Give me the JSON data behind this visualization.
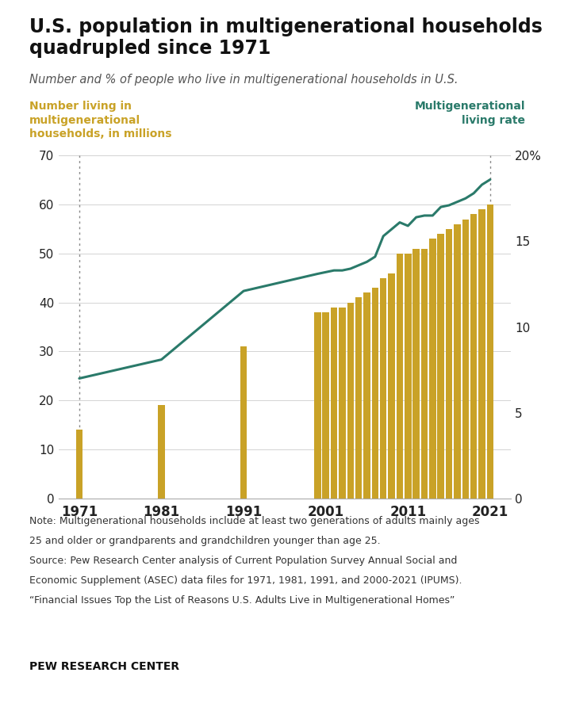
{
  "title": "U.S. population in multigenerational households\nquadrupled since 1971",
  "subtitle": "Number and % of people who live in multigenerational households in U.S.",
  "left_label": "Number living in\nmultigenerational\nhouseholds, in millions",
  "right_label": "Multigenerational\nliving rate",
  "note_line1": "Note: Multigenerational households include at least two generations of adults mainly ages",
  "note_line2": "25 and older or grandparents and grandchildren younger than age 25.",
  "note_line3": "Source: Pew Research Center analysis of Current Population Survey Annual Social and",
  "note_line4": "Economic Supplement (ASEC) data files for 1971, 1981, 1991, and 2000-2021 (IPUMS).",
  "note_line5": "“Financial Issues Top the List of Reasons U.S. Adults Live in Multigenerational Homes”",
  "footer": "PEW RESEARCH CENTER",
  "bar_color": "#C9A227",
  "line_color": "#2A7A6A",
  "background_color": "#FFFFFF",
  "bar_years": [
    1971,
    1981,
    1991,
    2000,
    2001,
    2002,
    2003,
    2004,
    2005,
    2006,
    2007,
    2008,
    2009,
    2010,
    2011,
    2012,
    2013,
    2014,
    2015,
    2016,
    2017,
    2018,
    2019,
    2020,
    2021
  ],
  "bar_values": [
    14,
    19,
    31,
    38,
    38,
    39,
    39,
    40,
    41,
    42,
    43,
    45,
    46,
    50,
    50,
    51,
    51,
    53,
    54,
    55,
    56,
    57,
    58,
    59,
    60
  ],
  "line_years": [
    1971,
    1981,
    1991,
    2000,
    2001,
    2002,
    2003,
    2004,
    2005,
    2006,
    2007,
    2008,
    2009,
    2010,
    2011,
    2012,
    2013,
    2014,
    2015,
    2016,
    2017,
    2018,
    2019,
    2020,
    2021
  ],
  "line_values": [
    7.0,
    8.1,
    12.1,
    13.1,
    13.2,
    13.3,
    13.3,
    13.4,
    13.6,
    13.8,
    14.1,
    15.3,
    15.7,
    16.1,
    15.9,
    16.4,
    16.5,
    16.5,
    17.0,
    17.1,
    17.3,
    17.5,
    17.8,
    18.3,
    18.6
  ],
  "ylim_left": [
    0,
    70
  ],
  "ylim_right": [
    0,
    20
  ],
  "yticks_left": [
    0,
    10,
    20,
    30,
    40,
    50,
    60,
    70
  ],
  "yticks_right": [
    0,
    5,
    10,
    15,
    20
  ],
  "ytick_right_labels": [
    "0",
    "5",
    "10",
    "15",
    "20%"
  ],
  "xticks": [
    1971,
    1981,
    1991,
    2001,
    2011,
    2021
  ],
  "xlim": [
    1968.5,
    2023.5
  ]
}
